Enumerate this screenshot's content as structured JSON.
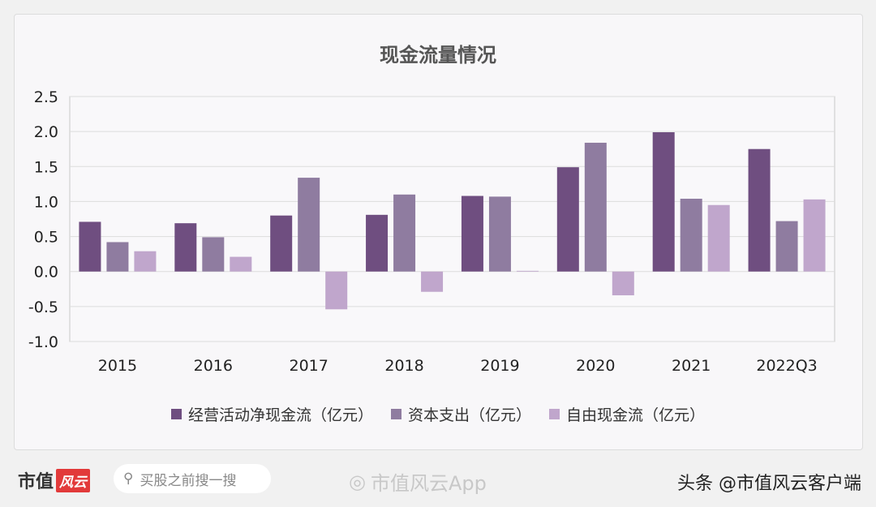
{
  "chart_data": {
    "type": "bar",
    "title": "现金流量情况",
    "categories": [
      "2015",
      "2016",
      "2017",
      "2018",
      "2019",
      "2020",
      "2021",
      "2022Q3"
    ],
    "series": [
      {
        "name": "经营活动净现金流（亿元）",
        "color": "#6f4e80",
        "values": [
          0.71,
          0.69,
          0.8,
          0.81,
          1.08,
          1.49,
          1.99,
          1.75
        ]
      },
      {
        "name": "资本支出（亿元）",
        "color": "#8f7ca0",
        "values": [
          0.42,
          0.49,
          1.34,
          1.1,
          1.07,
          1.84,
          1.04,
          0.72
        ]
      },
      {
        "name": "自由现金流（亿元）",
        "color": "#c0a6cc",
        "values": [
          0.29,
          0.21,
          -0.54,
          -0.29,
          0.01,
          -0.34,
          0.95,
          1.03
        ]
      }
    ],
    "ylim": [
      -1.0,
      2.5
    ],
    "yticks": [
      "2.5",
      "2.0",
      "1.5",
      "1.0",
      "0.5",
      "0.0",
      "-0.5",
      "-1.0"
    ],
    "ytick_values": [
      2.5,
      2.0,
      1.5,
      1.0,
      0.5,
      0.0,
      -0.5,
      -1.0
    ],
    "grid": true,
    "legend_position": "bottom",
    "xlabel": "",
    "ylabel": ""
  },
  "footer": {
    "logo_text": "市值",
    "logo_badge": "风云",
    "search_placeholder": "买股之前搜一搜",
    "weibo_text": "市值风云App",
    "toutiao_text": "头条 @市值风云客户端"
  }
}
